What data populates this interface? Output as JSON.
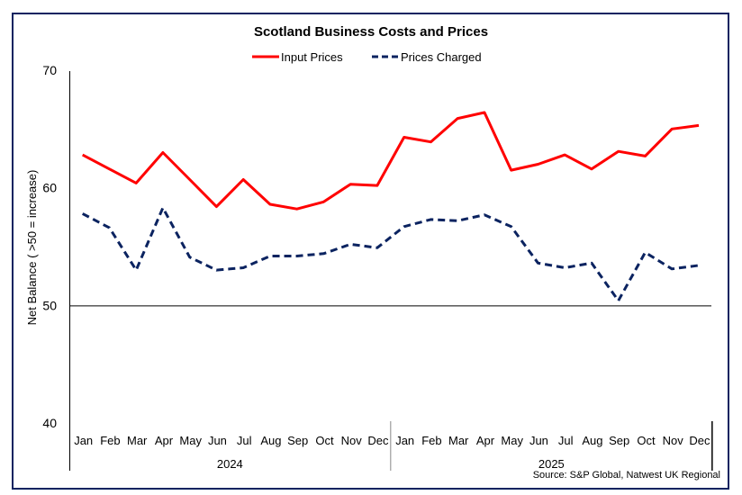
{
  "chart_data": {
    "type": "line",
    "title": "Scotland Business Costs and Prices",
    "ylabel": "Net Balance ( >50 = increase)",
    "xlabel": "",
    "ylim": [
      40,
      70
    ],
    "yticks": [
      40,
      50,
      60,
      70
    ],
    "reference_line": 50,
    "legend_position": "top-center",
    "categories": [
      "Jan",
      "Feb",
      "Mar",
      "Apr",
      "May",
      "Jun",
      "Jul",
      "Aug",
      "Sep",
      "Oct",
      "Nov",
      "Dec",
      "Jan",
      "Feb",
      "Mar",
      "Apr",
      "May",
      "Jun",
      "Jul",
      "Aug",
      "Sep",
      "Oct",
      "Nov",
      "Dec"
    ],
    "year_groups": [
      {
        "label": "2024",
        "count": 12
      },
      {
        "label": "2025",
        "count": 12
      }
    ],
    "series": [
      {
        "name": "Input Prices",
        "color": "#ff0000",
        "dash": "solid",
        "values": [
          62.8,
          61.6,
          60.4,
          63.0,
          60.7,
          58.4,
          60.7,
          58.6,
          58.2,
          58.8,
          60.3,
          60.2,
          64.3,
          63.9,
          65.9,
          66.4,
          61.5,
          62.0,
          62.8,
          61.6,
          63.1,
          62.7,
          65.0,
          65.3
        ]
      },
      {
        "name": "Prices Charged",
        "color": "#0b2360",
        "dash": "dashed",
        "values": [
          57.8,
          56.6,
          53.0,
          58.3,
          54.1,
          53.0,
          53.2,
          54.2,
          54.2,
          54.4,
          55.2,
          54.9,
          56.7,
          57.3,
          57.2,
          57.7,
          56.7,
          53.6,
          53.2,
          53.6,
          50.4,
          54.5,
          53.1,
          53.4
        ]
      }
    ],
    "source": "Source: S&P Global,  Natwest UK Regional"
  },
  "colors": {
    "frame": "#0b2360"
  }
}
